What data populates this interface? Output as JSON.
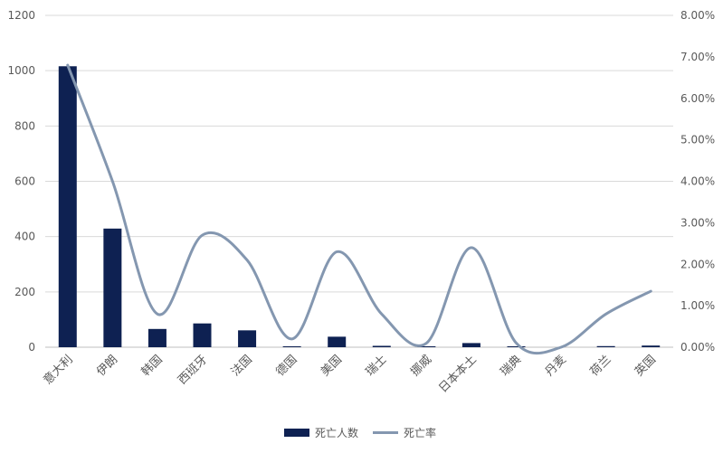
{
  "chart_data": {
    "type": "bar",
    "categories": [
      "意大利",
      "伊朗",
      "韩国",
      "西班牙",
      "法国",
      "德国",
      "美国",
      "瑞士",
      "挪威",
      "日本本土",
      "瑞典",
      "丹麦",
      "荷兰",
      "英国"
    ],
    "series": [
      {
        "name": "死亡人数",
        "type": "bar",
        "axis": "left",
        "color": "#0e2152",
        "values": [
          1016,
          429,
          66,
          86,
          61,
          3,
          38,
          5,
          3,
          15,
          2,
          0,
          4,
          6
        ]
      },
      {
        "name": "死亡率",
        "type": "line",
        "axis": "right",
        "color": "#8497b0",
        "values": [
          6.8,
          4.0,
          0.8,
          2.7,
          2.1,
          0.2,
          2.3,
          0.8,
          0.1,
          2.4,
          0.1,
          0.0,
          0.8,
          1.35
        ]
      }
    ],
    "y_left": {
      "min": 0,
      "max": 1200,
      "ticks": [
        "0",
        "200",
        "400",
        "600",
        "800",
        "1000",
        "1200"
      ]
    },
    "y_right": {
      "min": 0,
      "max": 8,
      "ticks": [
        "0.00%",
        "1.00%",
        "2.00%",
        "3.00%",
        "4.00%",
        "5.00%",
        "6.00%",
        "7.00%",
        "8.00%"
      ]
    },
    "grid": true,
    "legend_position": "bottom",
    "legend": [
      "死亡人数",
      "死亡率"
    ]
  }
}
